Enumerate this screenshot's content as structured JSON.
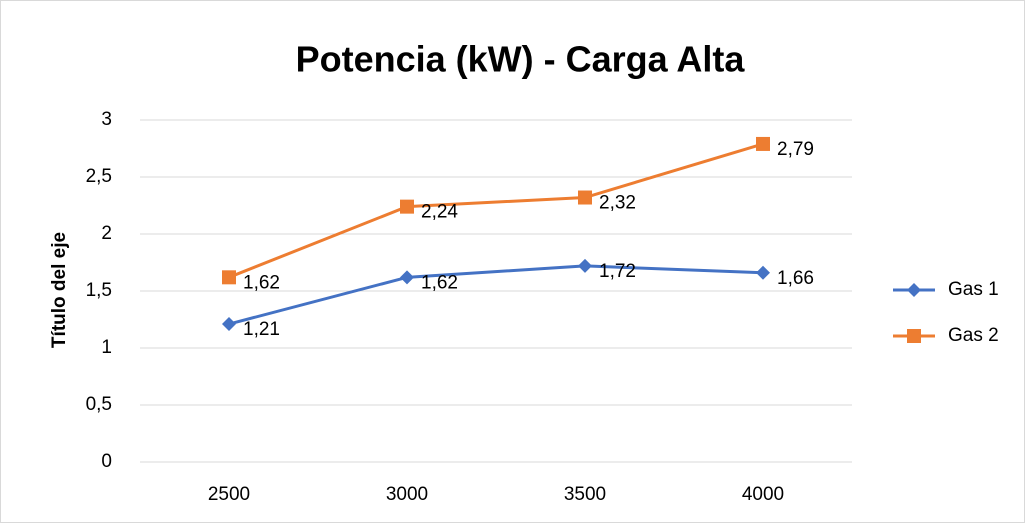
{
  "chart_data": {
    "type": "line",
    "title": "Potencia (kW) - Carga Alta",
    "y_label": "Título del eje",
    "categories": [
      "2500",
      "3000",
      "3500",
      "4000"
    ],
    "series": [
      {
        "name": "Gas 1",
        "color": "#4472c4",
        "marker": "diamond",
        "values": [
          1.21,
          1.62,
          1.72,
          1.66
        ],
        "value_labels": [
          "1,21",
          "1,62",
          "1,72",
          "1,66"
        ]
      },
      {
        "name": "Gas 2",
        "color": "#ed7d31",
        "marker": "square",
        "values": [
          1.62,
          2.24,
          2.32,
          2.79
        ],
        "value_labels": [
          "1,62",
          "2,24",
          "2,32",
          "2,79"
        ]
      }
    ],
    "ylim": [
      0,
      3
    ],
    "yticks": [
      0,
      {
        "value": 0.5,
        "label": "0,5"
      },
      1,
      {
        "value": 1.5,
        "label": "1,5"
      },
      2,
      {
        "value": 2.5,
        "label": "2,5"
      },
      3
    ],
    "grid": true,
    "legend": "right"
  }
}
